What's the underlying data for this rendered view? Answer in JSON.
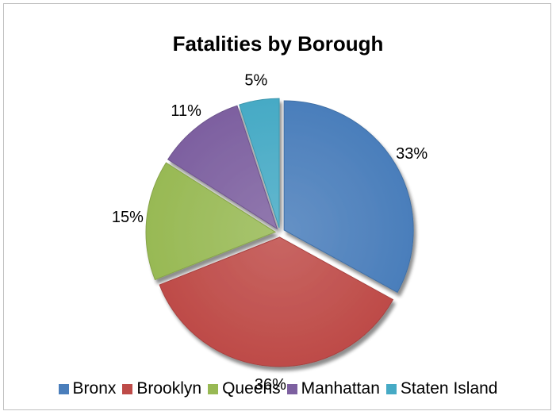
{
  "chart_data": {
    "type": "pie",
    "title": "Fatalities by Borough",
    "categories": [
      "Bronx",
      "Brooklyn",
      "Queens",
      "Manhattan",
      "Staten Island"
    ],
    "values": [
      33,
      36,
      15,
      11,
      5
    ],
    "labels": [
      "33%",
      "36%",
      "15%",
      "11%",
      "5%"
    ],
    "colors": [
      "#4a7ebb",
      "#be4b48",
      "#98b954",
      "#7d60a0",
      "#46aac5"
    ],
    "legend": "bottom",
    "exploded": true
  }
}
